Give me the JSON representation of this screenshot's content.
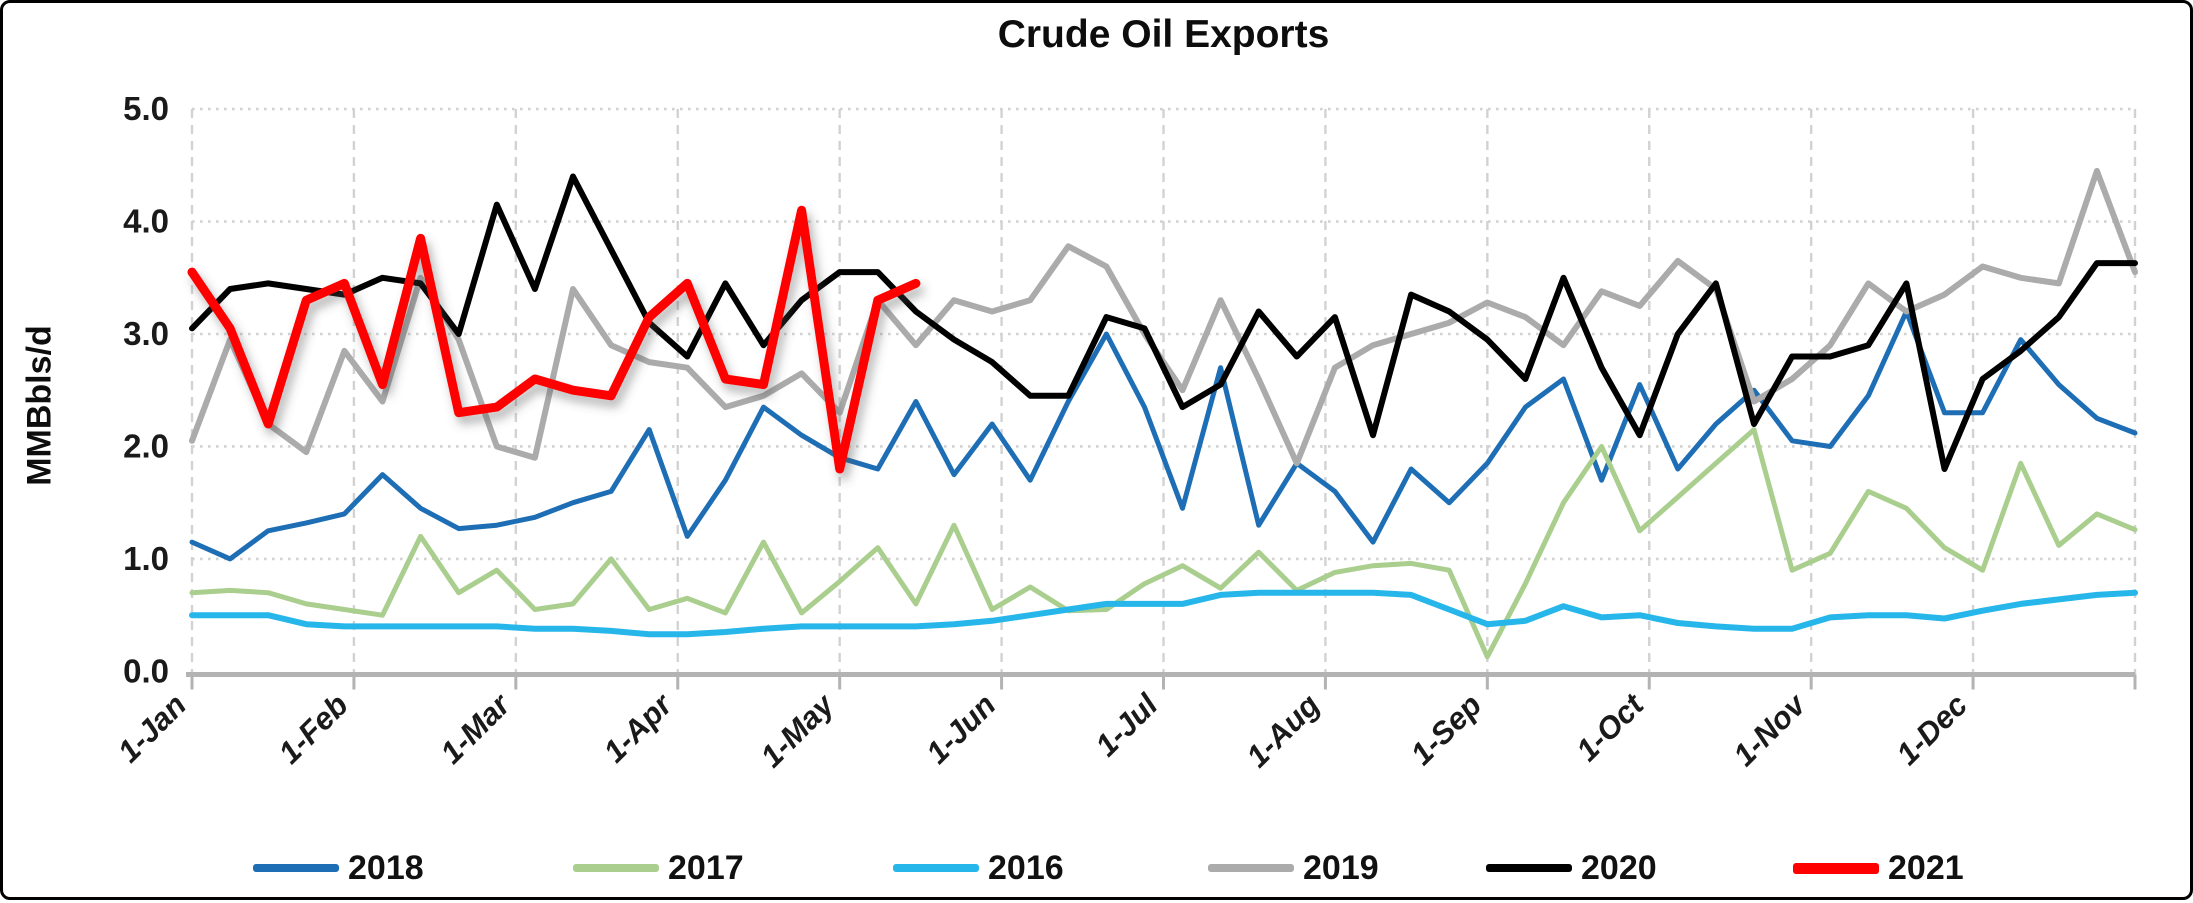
{
  "title": "Crude Oil Exports",
  "y_axis": {
    "label": "MMBbls/d",
    "ticks": [
      "5.0",
      "4.0",
      "3.0",
      "2.0",
      "1.0",
      "0.0"
    ],
    "min": 0,
    "max": 5
  },
  "x_axis": {
    "ticks": [
      "1-Jan",
      "1-Feb",
      "1-Mar",
      "1-Apr",
      "1-May",
      "1-Jun",
      "1-Jul",
      "1-Aug",
      "1-Sep",
      "1-Oct",
      "1-Nov",
      "1-Dec"
    ]
  },
  "colors": {
    "blue_2018": "#1E6EB5",
    "green_2017": "#A9CE8E",
    "cyan_2016": "#27B6EA",
    "gray_2019": "#ABABAB",
    "black_2020": "#000000",
    "red_2021": "#FF0000",
    "gridline": "#D2D2D2",
    "axis_line": "#B3B3B3",
    "tick_text": "#1A1A1A"
  },
  "legend": [
    {
      "label": "2018",
      "color": "#1E6EB5",
      "thickness": 8
    },
    {
      "label": "2017",
      "color": "#A9CE8E",
      "thickness": 8
    },
    {
      "label": "2016",
      "color": "#27B6EA",
      "thickness": 8
    },
    {
      "label": "2019",
      "color": "#ABABAB",
      "thickness": 8
    },
    {
      "label": "2020",
      "color": "#000000",
      "thickness": 8
    },
    {
      "label": "2021",
      "color": "#FF0000",
      "thickness": 11
    }
  ],
  "chart_data": {
    "type": "line",
    "title": "Crude Oil Exports",
    "xlabel": "",
    "ylabel": "MMBbls/d",
    "ylim": [
      0.0,
      5.0
    ],
    "x_unit": "weekly (52 points per year, Jan 1 to Dec 31)",
    "x_month_ticks": [
      "1-Jan",
      "1-Feb",
      "1-Mar",
      "1-Apr",
      "1-May",
      "1-Jun",
      "1-Jul",
      "1-Aug",
      "1-Sep",
      "1-Oct",
      "1-Nov",
      "1-Dec"
    ],
    "grid": "horizontal dotted + vertical dashed, light gray",
    "legend_position": "bottom",
    "series": [
      {
        "name": "2018",
        "color": "#1E6EB5",
        "width": 5,
        "values": [
          1.15,
          1.0,
          1.25,
          1.32,
          1.4,
          1.75,
          1.45,
          1.27,
          1.3,
          1.37,
          1.5,
          1.6,
          2.15,
          1.2,
          1.7,
          2.35,
          2.1,
          1.9,
          1.8,
          2.4,
          1.75,
          2.2,
          1.7,
          2.4,
          3.0,
          2.35,
          1.45,
          2.7,
          1.3,
          1.85,
          1.6,
          1.15,
          1.8,
          1.5,
          1.85,
          2.35,
          2.6,
          1.7,
          2.55,
          1.8,
          2.2,
          2.5,
          2.05,
          2.0,
          2.45,
          3.2,
          2.3,
          2.3,
          2.95,
          2.55,
          2.25,
          2.12
        ]
      },
      {
        "name": "2017",
        "color": "#A9CE8E",
        "width": 5,
        "values": [
          0.7,
          0.72,
          0.7,
          0.6,
          0.55,
          0.5,
          1.2,
          0.7,
          0.9,
          0.55,
          0.6,
          1.0,
          0.55,
          0.65,
          0.52,
          1.15,
          0.52,
          0.8,
          1.1,
          0.6,
          1.3,
          0.55,
          0.75,
          0.54,
          0.55,
          0.78,
          0.94,
          0.74,
          1.06,
          0.72,
          0.88,
          0.94,
          0.96,
          0.9,
          0.13,
          0.78,
          1.5,
          2.0,
          1.25,
          1.55,
          1.85,
          2.15,
          0.9,
          1.05,
          1.6,
          1.45,
          1.1,
          0.9,
          1.85,
          1.12,
          1.4,
          1.26
        ]
      },
      {
        "name": "2016",
        "color": "#27B6EA",
        "width": 6,
        "values": [
          0.5,
          0.5,
          0.5,
          0.42,
          0.4,
          0.4,
          0.4,
          0.4,
          0.4,
          0.38,
          0.38,
          0.36,
          0.33,
          0.33,
          0.35,
          0.38,
          0.4,
          0.4,
          0.4,
          0.4,
          0.42,
          0.45,
          0.5,
          0.55,
          0.6,
          0.6,
          0.6,
          0.68,
          0.7,
          0.7,
          0.7,
          0.7,
          0.68,
          0.55,
          0.42,
          0.45,
          0.58,
          0.48,
          0.5,
          0.43,
          0.4,
          0.38,
          0.38,
          0.48,
          0.5,
          0.5,
          0.47,
          0.54,
          0.6,
          0.64,
          0.68,
          0.7
        ]
      },
      {
        "name": "2019",
        "color": "#ABABAB",
        "width": 6,
        "values": [
          2.05,
          2.95,
          2.2,
          1.95,
          2.85,
          2.4,
          3.5,
          2.95,
          2.0,
          1.9,
          3.4,
          2.9,
          2.75,
          2.7,
          2.35,
          2.45,
          2.65,
          2.3,
          3.3,
          2.9,
          3.3,
          3.2,
          3.3,
          3.78,
          3.6,
          3.0,
          2.5,
          3.3,
          2.6,
          1.85,
          2.7,
          2.9,
          3.0,
          3.1,
          3.28,
          3.15,
          2.9,
          3.38,
          3.25,
          3.65,
          3.4,
          2.4,
          2.6,
          2.9,
          3.45,
          3.2,
          3.35,
          3.6,
          3.5,
          3.45,
          4.45,
          3.55
        ]
      },
      {
        "name": "2020",
        "color": "#000000",
        "width": 6,
        "values": [
          3.05,
          3.4,
          3.45,
          3.4,
          3.35,
          3.5,
          3.45,
          3.0,
          4.15,
          3.4,
          4.4,
          3.75,
          3.1,
          2.8,
          3.45,
          2.9,
          3.3,
          3.55,
          3.55,
          3.2,
          2.95,
          2.75,
          2.45,
          2.45,
          3.15,
          3.05,
          2.35,
          2.55,
          3.2,
          2.8,
          3.15,
          2.1,
          3.35,
          3.2,
          2.95,
          2.6,
          3.5,
          2.7,
          2.1,
          3.0,
          3.45,
          2.2,
          2.8,
          2.8,
          2.9,
          3.45,
          1.8,
          2.6,
          2.85,
          3.15,
          3.63,
          3.63
        ]
      },
      {
        "name": "2021",
        "color": "#FF0000",
        "width": 9,
        "shadow": true,
        "values": [
          3.55,
          3.05,
          2.2,
          3.3,
          3.45,
          2.55,
          3.85,
          2.3,
          2.35,
          2.6,
          2.5,
          2.45,
          3.15,
          3.45,
          2.6,
          2.55,
          4.1,
          1.8,
          3.3,
          3.45
        ]
      }
    ]
  }
}
